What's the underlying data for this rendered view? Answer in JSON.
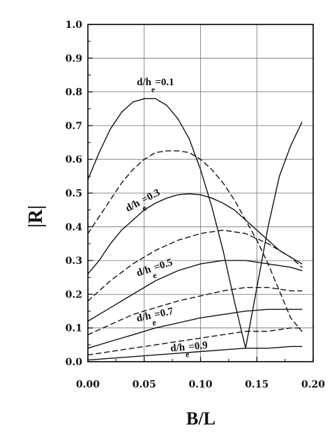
{
  "chart_data": {
    "type": "line",
    "title": "",
    "xlabel": "B/L",
    "ylabel": "|R|",
    "xlim": [
      0.0,
      0.2
    ],
    "ylim": [
      0.0,
      1.0
    ],
    "grid": true,
    "xticks": [
      "0.00",
      "0.05",
      "0.10",
      "0.15",
      "0.20"
    ],
    "yticks": [
      "0.0",
      "0.1",
      "0.2",
      "0.3",
      "0.4",
      "0.5",
      "0.6",
      "0.7",
      "0.8",
      "0.9",
      "1.0"
    ],
    "annotations": [
      {
        "main": "d/h",
        "sub": "e",
        "suffix": "=0.1",
        "x": 0.06,
        "y": 0.82
      },
      {
        "main": "d/h",
        "sub": "e",
        "suffix": "=0.3",
        "x": 0.05,
        "y": 0.47
      },
      {
        "main": "d/h",
        "sub": "e",
        "suffix": "=0.5",
        "x": 0.06,
        "y": 0.27
      },
      {
        "main": "d/h",
        "sub": "e",
        "suffix": "=0.7",
        "x": 0.06,
        "y": 0.13
      },
      {
        "main": "d/h",
        "sub": "e",
        "suffix": "=0.9",
        "x": 0.09,
        "y": 0.035
      }
    ],
    "series": [
      {
        "style": "solid",
        "x": [
          0.0,
          0.01,
          0.02,
          0.03,
          0.04,
          0.05,
          0.06,
          0.07,
          0.08,
          0.09,
          0.1,
          0.11,
          0.12,
          0.13,
          0.14,
          0.15,
          0.16,
          0.17,
          0.18,
          0.19
        ],
        "y": [
          0.54,
          0.62,
          0.69,
          0.74,
          0.77,
          0.78,
          0.78,
          0.76,
          0.72,
          0.66,
          0.57,
          0.46,
          0.33,
          0.18,
          0.04,
          0.22,
          0.4,
          0.55,
          0.64,
          0.71
        ]
      },
      {
        "style": "dashed",
        "x": [
          0.0,
          0.01,
          0.02,
          0.03,
          0.04,
          0.05,
          0.06,
          0.07,
          0.08,
          0.09,
          0.1,
          0.11,
          0.12,
          0.13,
          0.14,
          0.15,
          0.16,
          0.17,
          0.18,
          0.19
        ],
        "y": [
          0.38,
          0.43,
          0.48,
          0.53,
          0.57,
          0.6,
          0.62,
          0.625,
          0.625,
          0.62,
          0.6,
          0.57,
          0.53,
          0.48,
          0.42,
          0.36,
          0.29,
          0.21,
          0.13,
          0.09
        ]
      },
      {
        "style": "solid",
        "x": [
          0.0,
          0.01,
          0.02,
          0.03,
          0.04,
          0.05,
          0.06,
          0.07,
          0.08,
          0.09,
          0.1,
          0.11,
          0.12,
          0.13,
          0.14,
          0.15,
          0.16,
          0.17,
          0.18,
          0.19
        ],
        "y": [
          0.26,
          0.3,
          0.35,
          0.39,
          0.42,
          0.45,
          0.47,
          0.485,
          0.495,
          0.498,
          0.495,
          0.485,
          0.47,
          0.45,
          0.42,
          0.39,
          0.36,
          0.33,
          0.31,
          0.29
        ]
      },
      {
        "style": "dashed",
        "x": [
          0.0,
          0.02,
          0.04,
          0.06,
          0.08,
          0.1,
          0.12,
          0.14,
          0.16,
          0.18,
          0.19
        ],
        "y": [
          0.18,
          0.24,
          0.29,
          0.33,
          0.36,
          0.38,
          0.39,
          0.38,
          0.35,
          0.31,
          0.28
        ]
      },
      {
        "style": "solid",
        "x": [
          0.0,
          0.02,
          0.04,
          0.06,
          0.08,
          0.1,
          0.12,
          0.14,
          0.16,
          0.18,
          0.19
        ],
        "y": [
          0.12,
          0.16,
          0.2,
          0.24,
          0.27,
          0.29,
          0.3,
          0.3,
          0.29,
          0.28,
          0.27
        ]
      },
      {
        "style": "dashed",
        "x": [
          0.0,
          0.02,
          0.04,
          0.06,
          0.08,
          0.1,
          0.12,
          0.14,
          0.16,
          0.18,
          0.19
        ],
        "y": [
          0.08,
          0.11,
          0.14,
          0.16,
          0.18,
          0.195,
          0.21,
          0.22,
          0.22,
          0.21,
          0.21
        ]
      },
      {
        "style": "solid",
        "x": [
          0.0,
          0.02,
          0.04,
          0.06,
          0.08,
          0.1,
          0.12,
          0.14,
          0.16,
          0.18,
          0.19
        ],
        "y": [
          0.04,
          0.06,
          0.08,
          0.1,
          0.115,
          0.13,
          0.14,
          0.15,
          0.155,
          0.155,
          0.155
        ]
      },
      {
        "style": "dashed",
        "x": [
          0.0,
          0.02,
          0.04,
          0.06,
          0.08,
          0.1,
          0.12,
          0.14,
          0.16,
          0.18,
          0.19
        ],
        "y": [
          0.02,
          0.03,
          0.04,
          0.05,
          0.06,
          0.07,
          0.08,
          0.09,
          0.09,
          0.1,
          0.1
        ]
      },
      {
        "style": "solid",
        "x": [
          0.0,
          0.02,
          0.04,
          0.06,
          0.08,
          0.1,
          0.12,
          0.14,
          0.16,
          0.18,
          0.19
        ],
        "y": [
          0.005,
          0.01,
          0.015,
          0.02,
          0.025,
          0.03,
          0.035,
          0.04,
          0.04,
          0.045,
          0.045
        ]
      }
    ]
  }
}
